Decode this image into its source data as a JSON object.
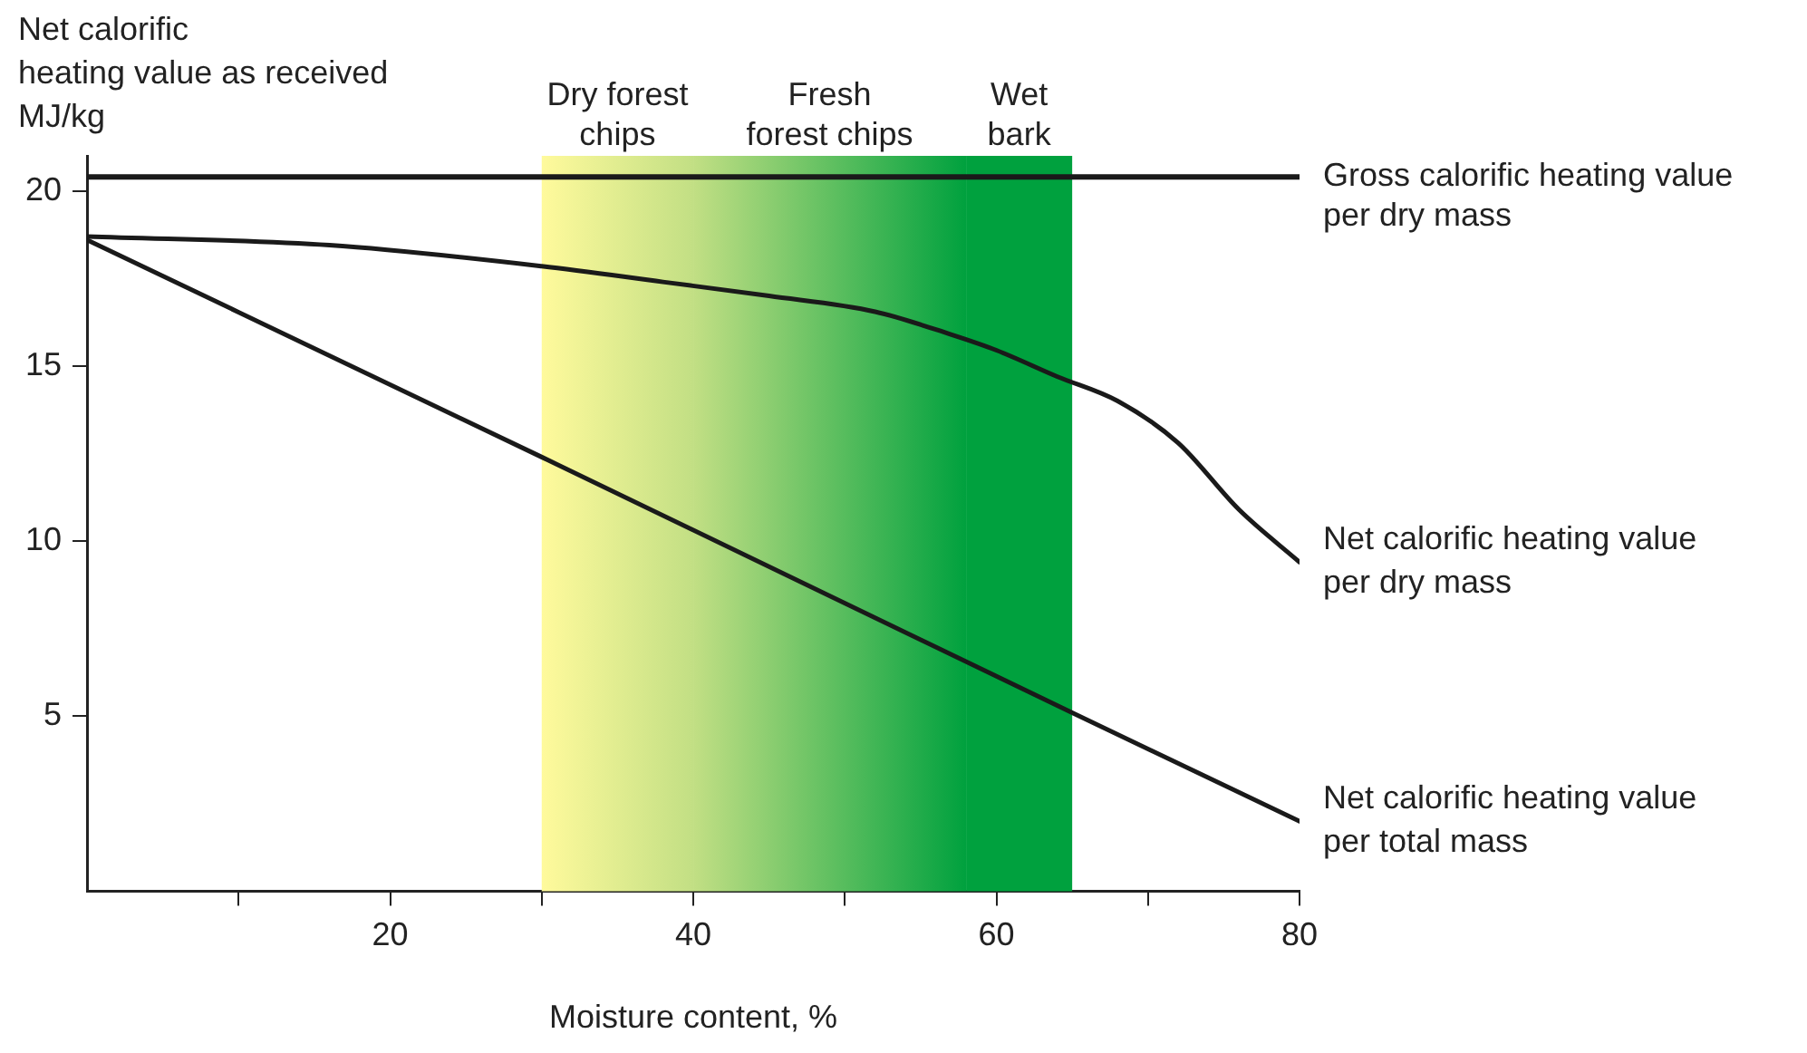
{
  "chart_data": {
    "type": "line",
    "ylabel": "Net calorific\nheating value as received\nMJ/kg",
    "xlabel": "Moisture content, %",
    "xlim": [
      0,
      80
    ],
    "ylim": [
      0,
      21
    ],
    "xticks": [
      {
        "value": 10,
        "label": null
      },
      20,
      {
        "value": 30,
        "label": null
      },
      40,
      {
        "value": 50,
        "label": null
      },
      60,
      {
        "value": 70,
        "label": null
      },
      80
    ],
    "yticks": [
      5,
      10,
      15,
      20
    ],
    "grid": false,
    "legend": false,
    "marker": "none",
    "line_style": "solid",
    "series": [
      {
        "name": "Net calorific heating value per dry mass",
        "color": "#1a1a1a",
        "x": [
          0,
          16,
          30,
          38,
          45,
          52,
          57,
          60,
          64,
          68,
          72,
          76,
          80
        ],
        "values": [
          18.7,
          18.45,
          17.85,
          17.4,
          17.0,
          16.55,
          15.9,
          15.45,
          14.7,
          14.0,
          12.8,
          10.9,
          9.4
        ]
      },
      {
        "name": "Net calorific heating value per total mass",
        "color": "#1a1a1a",
        "x": [
          0,
          30,
          65,
          80
        ],
        "values": [
          18.6,
          12.4,
          5.1,
          2.0
        ]
      }
    ],
    "ref_lines": [
      {
        "axis": "y",
        "value": 20.4,
        "label": "Gross calorific heating value per dry mass",
        "color": "#1a1a1a"
      }
    ],
    "bands": [
      {
        "axis": "x",
        "from": 30,
        "to": 40,
        "label": "Dry forest\nchips",
        "color": "#fffa9c"
      },
      {
        "axis": "x",
        "from": 40,
        "to": 58,
        "label": "Fresh\nforest chips",
        "color": "#c2df84"
      },
      {
        "axis": "x",
        "from": 58,
        "to": 65,
        "label": "Wet\nbark",
        "color": "#00a13e"
      }
    ]
  }
}
